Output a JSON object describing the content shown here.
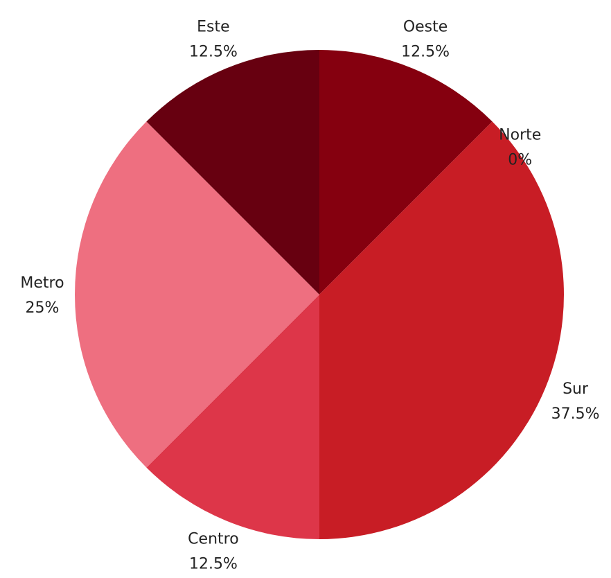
{
  "chart_data": {
    "type": "pie",
    "title": "",
    "start_angle_deg": 0,
    "direction": "clockwise",
    "slices": [
      {
        "label": "Oeste",
        "percent_label": "12.5%",
        "value": 12.5,
        "color": "#85000F"
      },
      {
        "label": "Norte",
        "percent_label": "0%",
        "value": 0,
        "color": "#85000F"
      },
      {
        "label": "Sur",
        "percent_label": "37.5%",
        "value": 37.5,
        "color": "#C81D25"
      },
      {
        "label": "Centro",
        "percent_label": "12.5%",
        "value": 12.5,
        "color": "#DD3649"
      },
      {
        "label": "Metro",
        "percent_label": "25%",
        "value": 25,
        "color": "#EE6F80"
      },
      {
        "label": "Este",
        "percent_label": "12.5%",
        "value": 12.5,
        "color": "#670010"
      }
    ]
  }
}
